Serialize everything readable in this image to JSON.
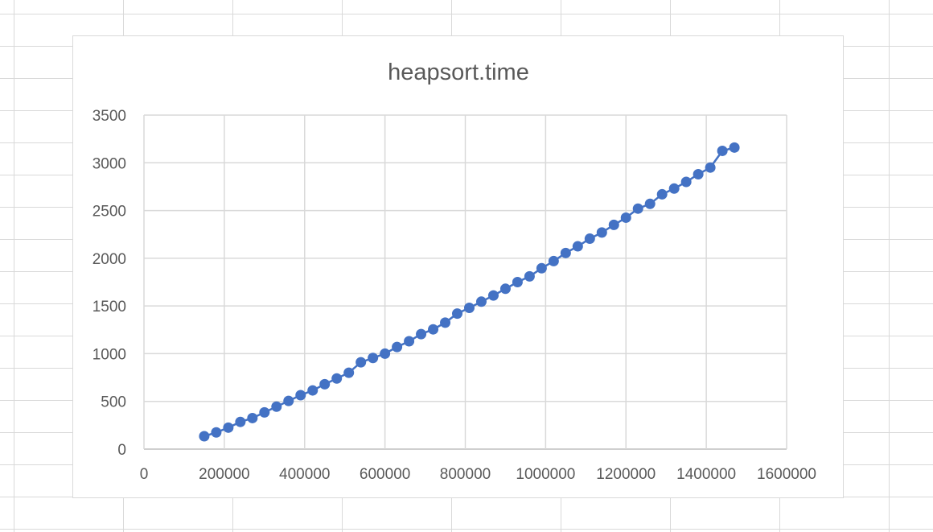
{
  "chart_data": {
    "type": "scatter",
    "title": "heapsort.time",
    "xlabel": "",
    "ylabel": "",
    "xlim": [
      0,
      1600000
    ],
    "ylim": [
      0,
      3500
    ],
    "x_ticks": [
      0,
      200000,
      400000,
      600000,
      800000,
      1000000,
      1200000,
      1400000,
      1600000
    ],
    "y_ticks": [
      0,
      500,
      1000,
      1500,
      2000,
      2500,
      3000,
      3500
    ],
    "x_tick_labels": [
      "0",
      "200000",
      "400000",
      "600000",
      "800000",
      "1000000",
      "1200000",
      "1400000",
      "1600000"
    ],
    "y_tick_labels": [
      "0",
      "500",
      "1000",
      "1500",
      "2000",
      "2500",
      "3000",
      "3500"
    ],
    "grid": true,
    "legend": "none",
    "series": [
      {
        "color": "#4472c4",
        "points": [
          [
            150000,
            135
          ],
          [
            180000,
            175
          ],
          [
            210000,
            225
          ],
          [
            240000,
            285
          ],
          [
            270000,
            325
          ],
          [
            300000,
            385
          ],
          [
            330000,
            445
          ],
          [
            360000,
            505
          ],
          [
            390000,
            565
          ],
          [
            420000,
            615
          ],
          [
            450000,
            680
          ],
          [
            480000,
            740
          ],
          [
            510000,
            800
          ],
          [
            540000,
            910
          ],
          [
            570000,
            955
          ],
          [
            600000,
            1000
          ],
          [
            630000,
            1070
          ],
          [
            660000,
            1130
          ],
          [
            690000,
            1205
          ],
          [
            720000,
            1255
          ],
          [
            750000,
            1325
          ],
          [
            780000,
            1420
          ],
          [
            810000,
            1480
          ],
          [
            840000,
            1545
          ],
          [
            870000,
            1610
          ],
          [
            900000,
            1680
          ],
          [
            930000,
            1750
          ],
          [
            960000,
            1810
          ],
          [
            990000,
            1895
          ],
          [
            1020000,
            1970
          ],
          [
            1050000,
            2055
          ],
          [
            1080000,
            2125
          ],
          [
            1110000,
            2205
          ],
          [
            1140000,
            2270
          ],
          [
            1170000,
            2350
          ],
          [
            1200000,
            2425
          ],
          [
            1230000,
            2520
          ],
          [
            1260000,
            2570
          ],
          [
            1290000,
            2670
          ],
          [
            1320000,
            2730
          ],
          [
            1350000,
            2800
          ],
          [
            1380000,
            2880
          ],
          [
            1410000,
            2950
          ],
          [
            1440000,
            3125
          ],
          [
            1470000,
            3160
          ]
        ]
      }
    ]
  }
}
